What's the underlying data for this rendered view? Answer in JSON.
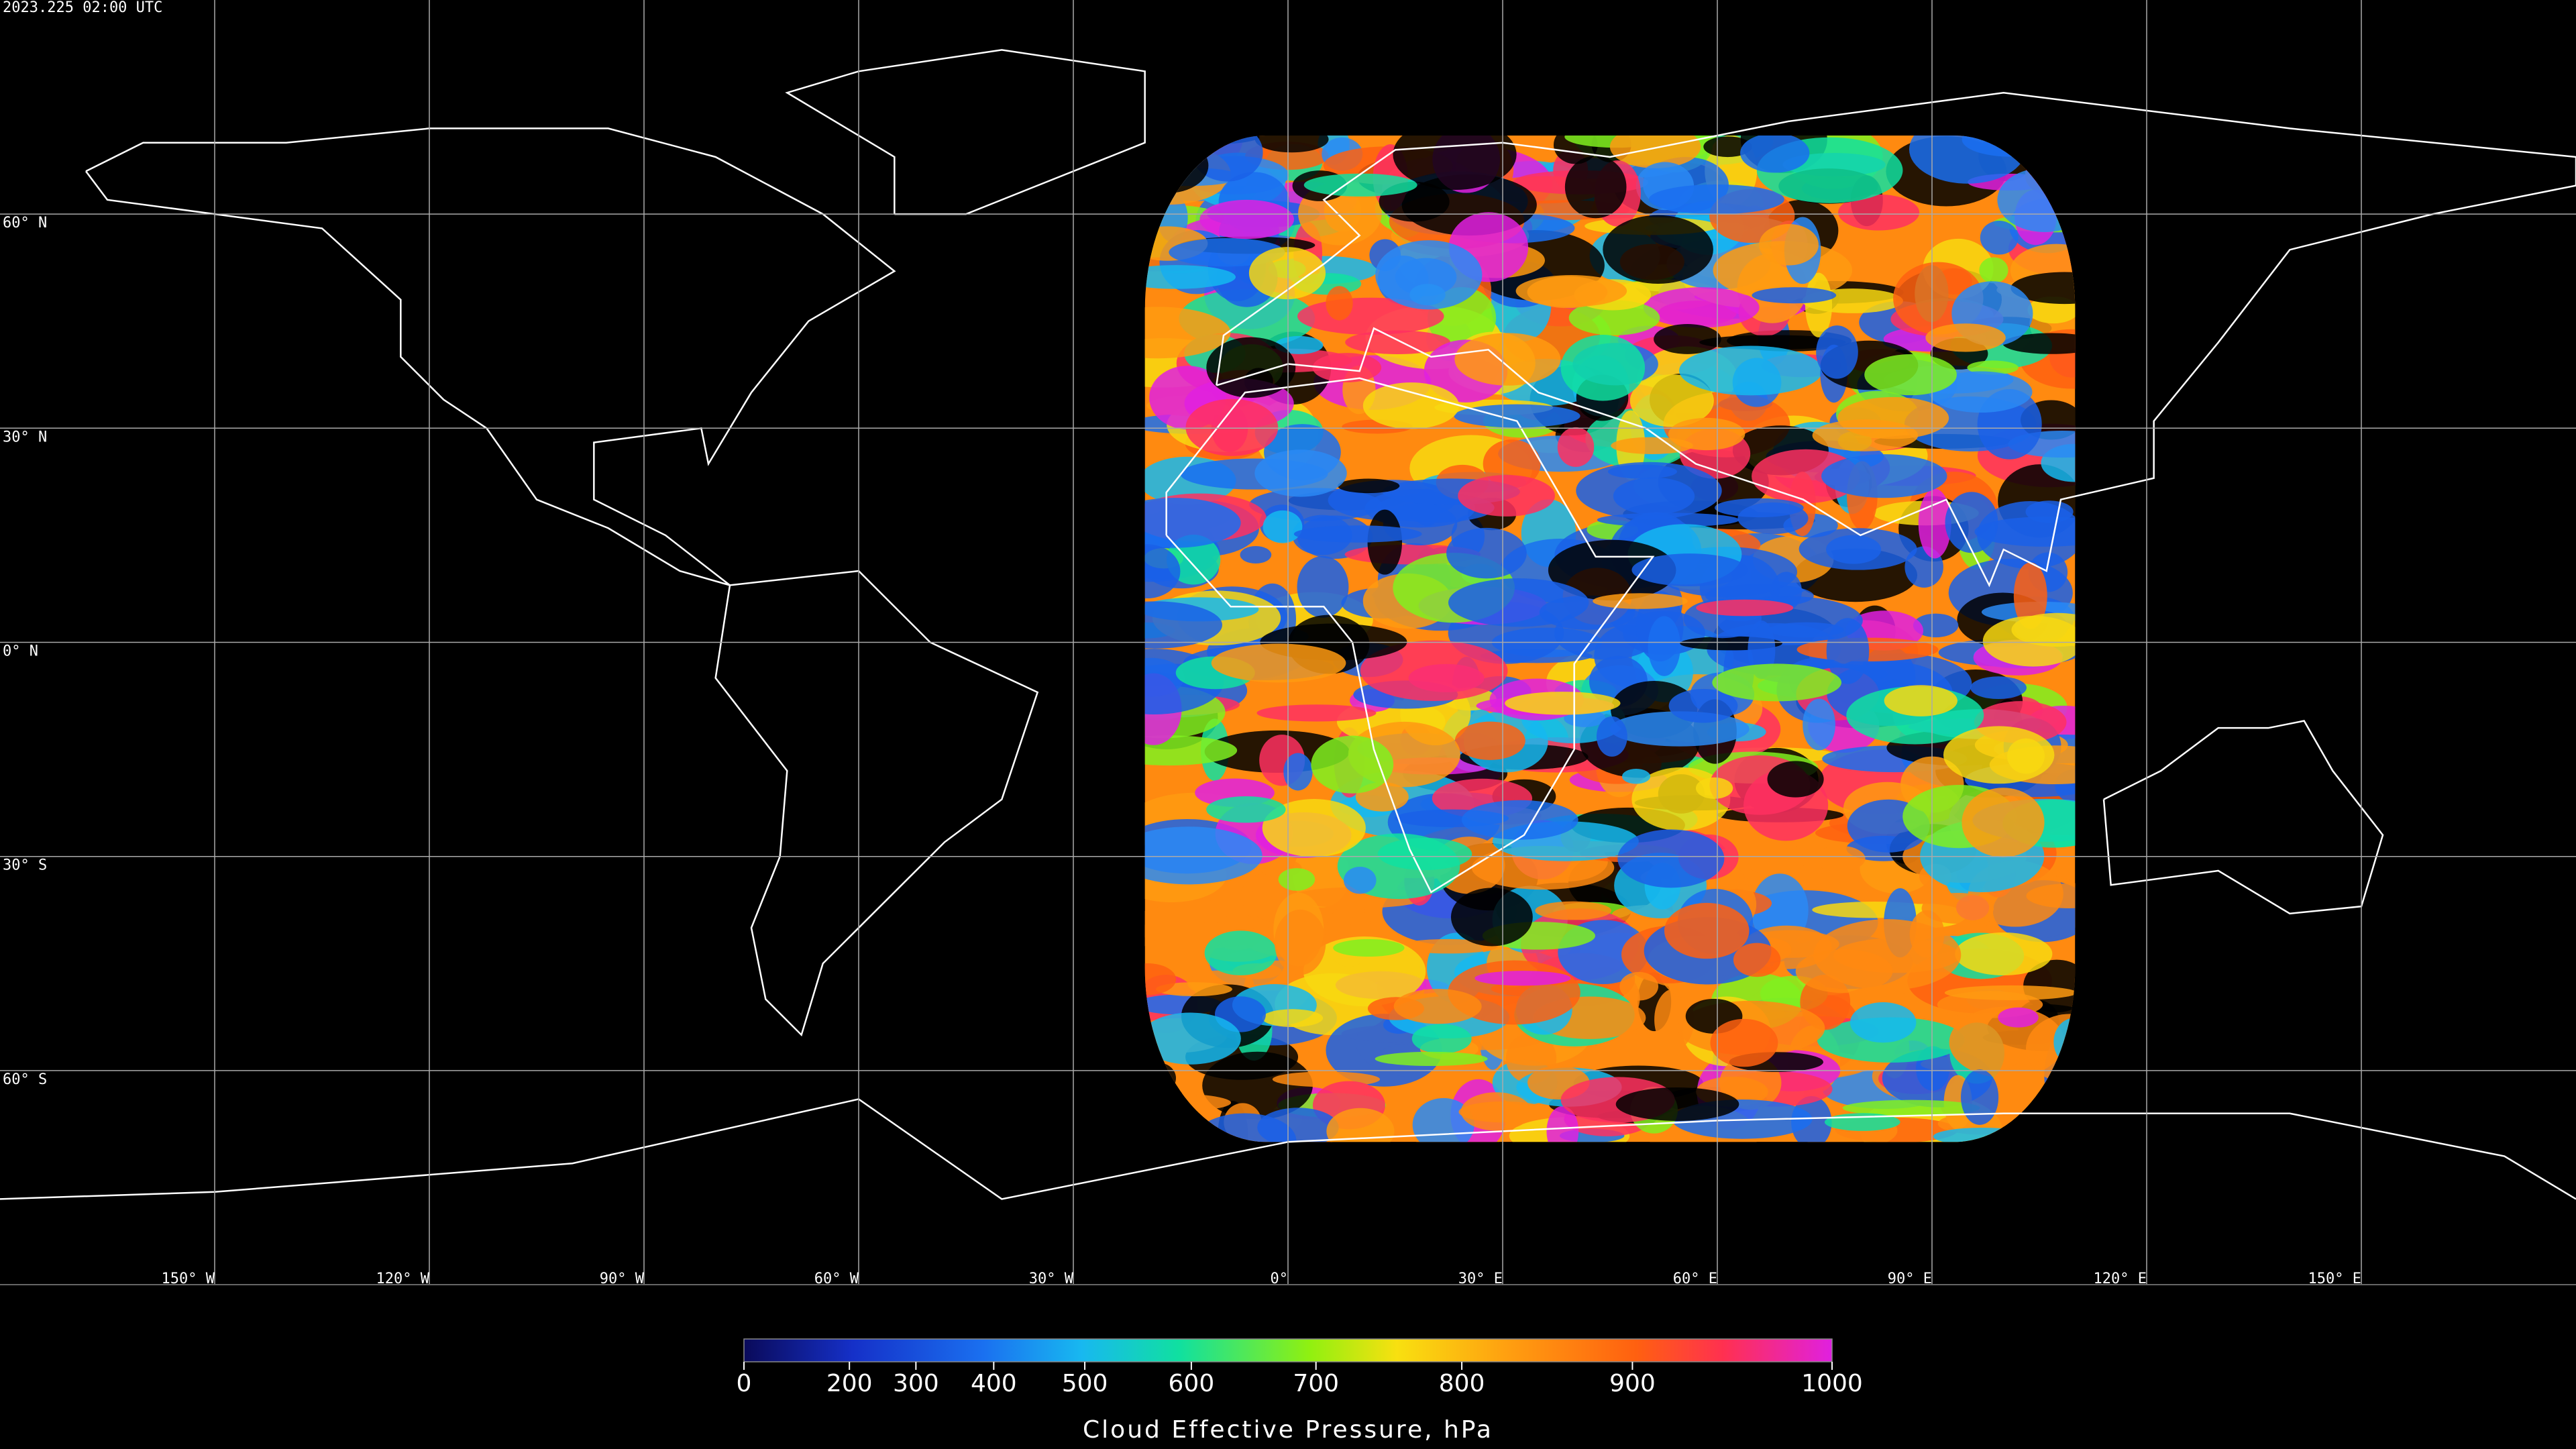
{
  "timestamp": "2023.225 02:00 UTC",
  "latitudes": [
    {
      "value": 60,
      "label": "60° N"
    },
    {
      "value": 30,
      "label": "30° N"
    },
    {
      "value": 0,
      "label": "0° N"
    },
    {
      "value": -30,
      "label": "30° S"
    },
    {
      "value": -60,
      "label": "60° S"
    }
  ],
  "longitudes": [
    {
      "value": -150,
      "label": "150° W"
    },
    {
      "value": -120,
      "label": "120° W"
    },
    {
      "value": -90,
      "label": "90° W"
    },
    {
      "value": -60,
      "label": "60° W"
    },
    {
      "value": -30,
      "label": "30° W"
    },
    {
      "value": 0,
      "label": "0°"
    },
    {
      "value": 30,
      "label": "30° E"
    },
    {
      "value": 60,
      "label": "60° E"
    },
    {
      "value": 90,
      "label": "90° E"
    },
    {
      "value": 120,
      "label": "120° E"
    },
    {
      "value": 150,
      "label": "150° E"
    }
  ],
  "colorbar": {
    "title": "Cloud Effective Pressure, hPa",
    "range": [
      0,
      1000
    ],
    "ticks": [
      0,
      200,
      300,
      400,
      500,
      600,
      700,
      800,
      900,
      1000
    ]
  }
}
